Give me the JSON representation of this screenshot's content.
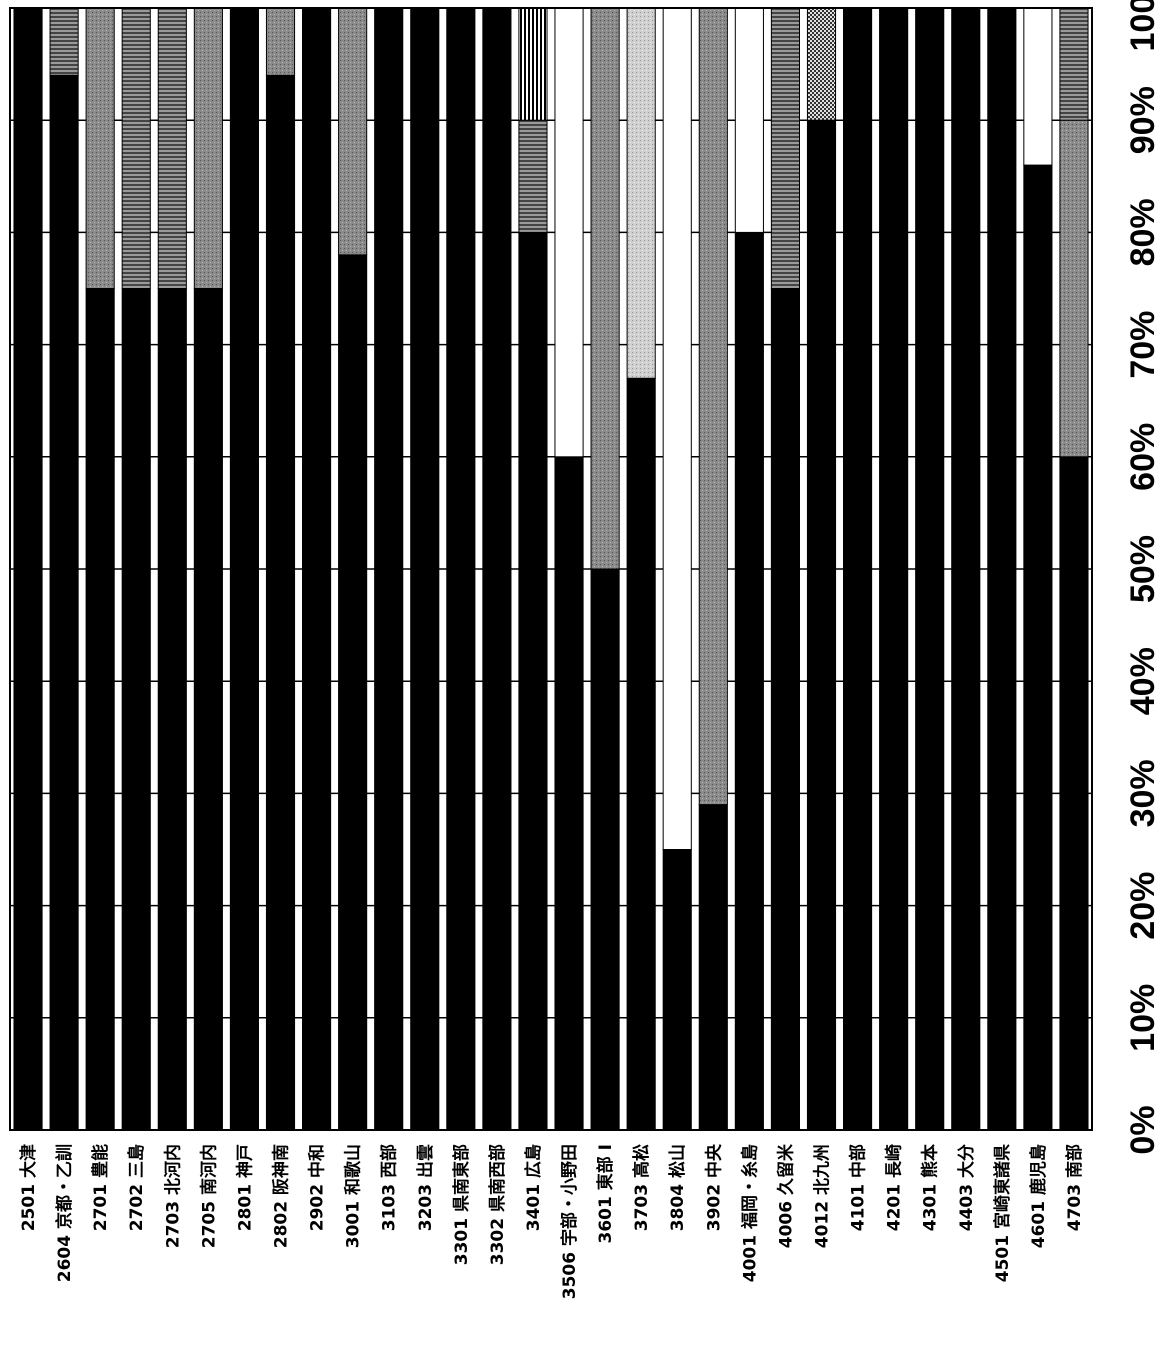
{
  "chart_data": {
    "type": "bar",
    "orientation": "horizontal-stacked-percent",
    "rotated": "90deg-clockwise",
    "title": "",
    "xlabel": "",
    "ylabel": "",
    "xlim": [
      0,
      100
    ],
    "grid": true,
    "legend": "none",
    "x_ticks": [
      "0%",
      "10%",
      "20%",
      "30%",
      "40%",
      "50%",
      "60%",
      "70%",
      "80%",
      "90%",
      "100%"
    ],
    "categories": [
      "2501 大津",
      "2604 京都・乙訓",
      "2701 豊能",
      "2702 三島",
      "2703 北河内",
      "2705 南河内",
      "2801 神戸",
      "2802 阪神南",
      "2902 中和",
      "3001 和歌山",
      "3103 西部",
      "3203 出雲",
      "3301 県南東部",
      "3302 県南西部",
      "3401 広島",
      "3506 宇部・小野田",
      "3601 東部 I",
      "3703 高松",
      "3804 松山",
      "3902 中央",
      "4001 福岡・糸島",
      "4006 久留米",
      "4012 北九州",
      "4101 中部",
      "4201 長崎",
      "4301 熊本",
      "4403 大分",
      "4501 宮崎東諸県",
      "4601 鹿児島",
      "4703 南部"
    ],
    "series": [
      {
        "values": [
          100,
          94,
          75,
          75,
          75,
          75,
          100,
          94,
          100,
          78,
          100,
          100,
          100,
          100,
          80,
          60,
          50,
          67,
          25,
          29,
          80,
          75,
          90,
          100,
          100,
          100,
          100,
          100,
          86,
          60
        ]
      },
      {
        "values": [
          0,
          0,
          25,
          0,
          0,
          25,
          0,
          6,
          0,
          22,
          0,
          0,
          0,
          0,
          0,
          0,
          50,
          0,
          0,
          71,
          0,
          0,
          0,
          0,
          0,
          0,
          0,
          0,
          0,
          30
        ]
      },
      {
        "values": [
          0,
          6,
          0,
          25,
          25,
          0,
          0,
          0,
          0,
          0,
          0,
          0,
          0,
          0,
          10,
          0,
          0,
          0,
          0,
          0,
          0,
          25,
          0,
          0,
          0,
          0,
          0,
          0,
          0,
          10
        ]
      },
      {
        "values": [
          0,
          0,
          0,
          0,
          0,
          0,
          0,
          0,
          0,
          0,
          0,
          0,
          0,
          0,
          10,
          0,
          0,
          0,
          0,
          0,
          0,
          0,
          0,
          0,
          0,
          0,
          0,
          0,
          0,
          0
        ]
      },
      {
        "values": [
          0,
          0,
          0,
          0,
          0,
          0,
          0,
          0,
          0,
          0,
          0,
          0,
          0,
          0,
          0,
          0,
          0,
          33,
          0,
          0,
          0,
          0,
          0,
          0,
          0,
          0,
          0,
          0,
          0,
          0
        ]
      },
      {
        "values": [
          0,
          0,
          0,
          0,
          0,
          0,
          0,
          0,
          0,
          0,
          0,
          0,
          0,
          0,
          0,
          0,
          0,
          0,
          0,
          0,
          0,
          0,
          10,
          0,
          0,
          0,
          0,
          0,
          0,
          0
        ]
      },
      {
        "values": [
          0,
          0,
          0,
          0,
          0,
          0,
          0,
          0,
          0,
          0,
          0,
          0,
          0,
          0,
          0,
          40,
          0,
          0,
          75,
          0,
          20,
          0,
          0,
          0,
          0,
          0,
          0,
          0,
          14,
          0
        ]
      }
    ],
    "series_colors": [
      "#000000",
      "#8a8a8a",
      "#b0b0b0",
      "#e6e6e6",
      "#cfcfcf",
      "#d9d9d9",
      "#ffffff"
    ]
  }
}
